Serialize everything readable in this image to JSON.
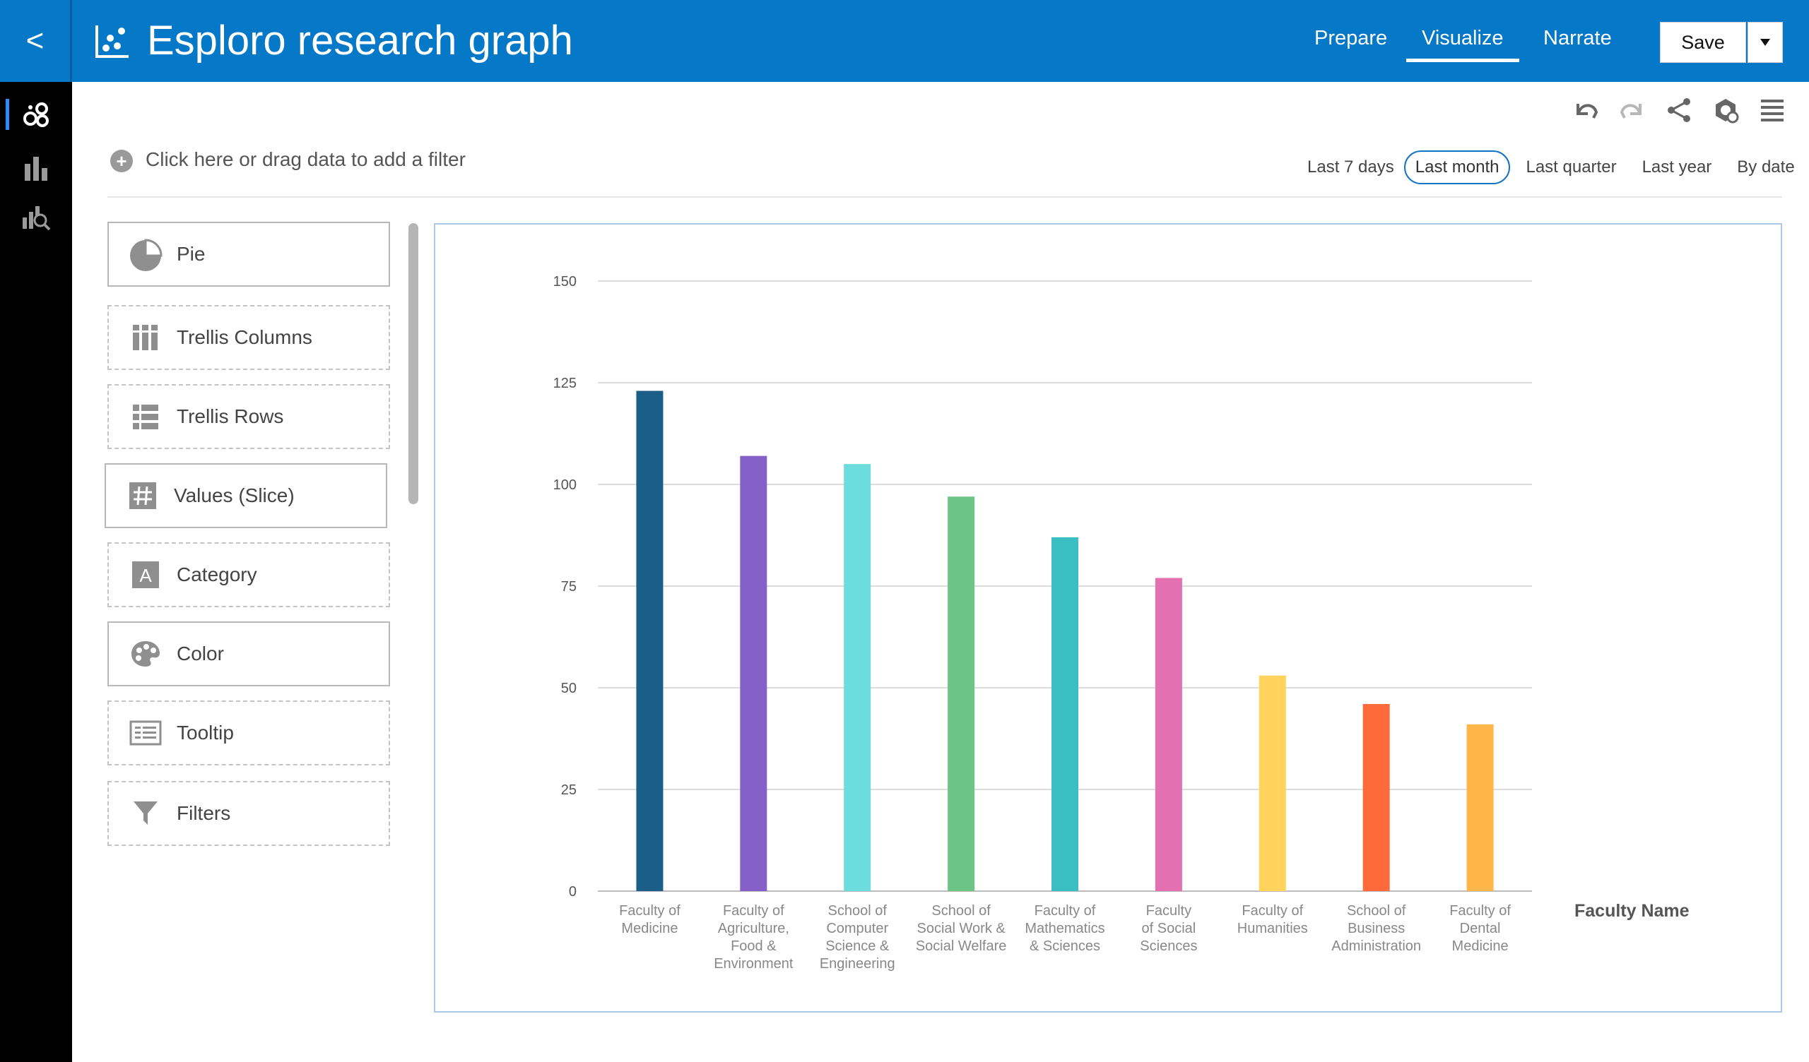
{
  "header": {
    "back_label": "<",
    "title": "Esploro research graph",
    "tabs": [
      {
        "label": "Prepare",
        "active": false
      },
      {
        "label": "Visualize",
        "active": true
      },
      {
        "label": "Narrate",
        "active": false
      }
    ],
    "save_label": "Save",
    "save_dropdown_icon": "caret-down-icon"
  },
  "rail": {
    "items": [
      {
        "icon": "data-elements-icon",
        "active": true
      },
      {
        "icon": "visualizations-icon",
        "active": false
      },
      {
        "icon": "analytics-icon",
        "active": false
      }
    ]
  },
  "filter_bar": {
    "add_filter_text": "Click here or drag data to add a filter",
    "toolbar_icons": [
      "undo-icon",
      "redo-icon",
      "share-icon",
      "refresh-icon",
      "menu-icon"
    ],
    "time_ranges": [
      "Last 7 days",
      "Last month",
      "Last quarter",
      "Last year",
      "By date"
    ],
    "selected_time_range": "Last month"
  },
  "grammar_panel": {
    "slots": [
      {
        "label": "Pie",
        "icon": "pie-chart-icon",
        "style": "solid"
      },
      {
        "label": "Trellis Columns",
        "icon": "trellis-columns-icon",
        "style": "dashed"
      },
      {
        "label": "Trellis Rows",
        "icon": "trellis-rows-icon",
        "style": "dashed"
      },
      {
        "label": "Values (Slice)",
        "icon": "hash-icon",
        "style": "solid"
      },
      {
        "label": "Category",
        "icon": "category-icon",
        "style": "dashed"
      },
      {
        "label": "Color",
        "icon": "palette-icon",
        "style": "solid"
      },
      {
        "label": "Tooltip",
        "icon": "tooltip-icon",
        "style": "dashed"
      },
      {
        "label": "Filters",
        "icon": "funnel-icon",
        "style": "dashed"
      }
    ]
  },
  "chart_data": {
    "type": "bar",
    "title": "",
    "xlabel": "Faculty Name",
    "ylabel": "",
    "ylim": [
      0,
      150
    ],
    "yticks": [
      0,
      25,
      50,
      75,
      100,
      125,
      150
    ],
    "grid": true,
    "categories": [
      [
        "Faculty of",
        "Medicine"
      ],
      [
        "Faculty of",
        "Agriculture,",
        "Food &",
        "Environment"
      ],
      [
        "School of",
        "Computer",
        "Science &",
        "Engineering"
      ],
      [
        "School of",
        "Social Work &",
        "Social Welfare"
      ],
      [
        "Faculty of",
        "Mathematics",
        "& Sciences"
      ],
      [
        "Faculty",
        "of Social",
        "Sciences"
      ],
      [
        "Faculty of",
        "Humanities"
      ],
      [
        "School of",
        "Business",
        "Administration"
      ],
      [
        "Faculty of",
        "Dental",
        "Medicine"
      ]
    ],
    "values": [
      123,
      107,
      105,
      97,
      87,
      77,
      53,
      46,
      41
    ],
    "colors": [
      "#1b5e87",
      "#8560c9",
      "#6ddcdc",
      "#6cc485",
      "#3cbfc4",
      "#e371b2",
      "#ffd35c",
      "#ff6a3a",
      "#ffb547"
    ]
  }
}
